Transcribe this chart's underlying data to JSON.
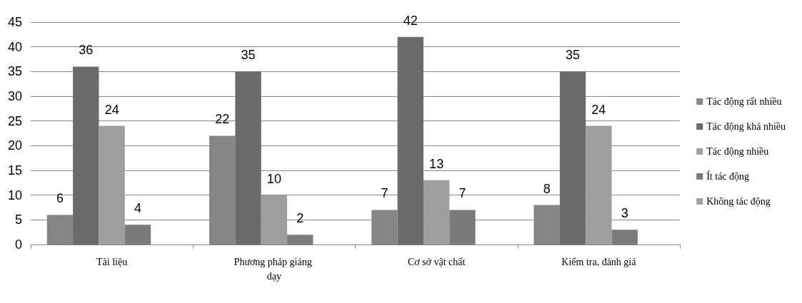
{
  "chart_data": {
    "type": "bar",
    "categories": [
      "Tài liệu",
      "Phương pháp giảng dạy",
      "Cơ sở vật chất",
      "Kiểm tra, đánh giá"
    ],
    "series": [
      {
        "name": "Tác động rất nhiều",
        "color": "#858585",
        "values": [
          6,
          22,
          7,
          8
        ]
      },
      {
        "name": "Tác động khá nhiều",
        "color": "#6b6b6b",
        "values": [
          36,
          35,
          42,
          35
        ]
      },
      {
        "name": "Tác động nhiều",
        "color": "#9e9e9e",
        "values": [
          24,
          10,
          13,
          24
        ]
      },
      {
        "name": "Ít tác động",
        "color": "#7b7b7b",
        "values": [
          4,
          2,
          7,
          3
        ]
      },
      {
        "name": "Không tác động",
        "color": "#a0a0a0",
        "values": [
          null,
          null,
          null,
          null
        ]
      }
    ],
    "ylim": [
      0,
      45
    ],
    "yticks": [
      0,
      5,
      10,
      15,
      20,
      25,
      30,
      35,
      40,
      45
    ],
    "grid": "y",
    "legend": "right",
    "data_labels": true
  }
}
